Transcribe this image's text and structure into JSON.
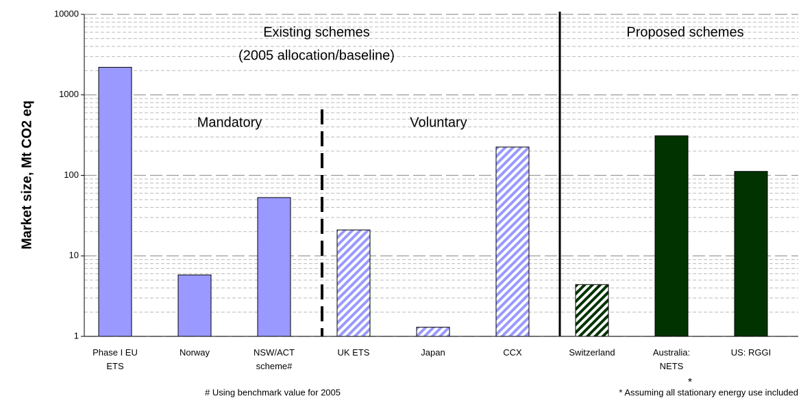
{
  "chart_data": {
    "type": "bar",
    "y_label": "Market size, Mt CO2 eq",
    "categories": [
      "Phase I EU ETS",
      "Norway",
      "NSW/ACT scheme#",
      "UK ETS",
      "Japan",
      "CCX",
      "Switzerland",
      "Australia: NETS",
      "US: RGGI"
    ],
    "values": [
      2200,
      5.8,
      53,
      21,
      1.3,
      225,
      4.4,
      310,
      112
    ],
    "colors": [
      "#9999ff",
      "#9999ff",
      "#9999ff",
      "#9999ff",
      "#9999ff",
      "#9999ff",
      "#003300",
      "#003300",
      "#003300"
    ],
    "hatched": [
      false,
      false,
      false,
      true,
      true,
      true,
      true,
      false,
      false
    ],
    "ylim": [
      1,
      10000
    ],
    "yticks": [
      1,
      10,
      100,
      1000,
      10000
    ],
    "log_scale": true,
    "grid": true,
    "annotations": [
      "Existing schemes",
      "(2005 allocation/baseline)",
      "Proposed schemes",
      "Mandatory",
      "Voluntary",
      "*",
      "# Using benchmark value for 2005",
      "* Assuming all stationary energy use included"
    ]
  }
}
